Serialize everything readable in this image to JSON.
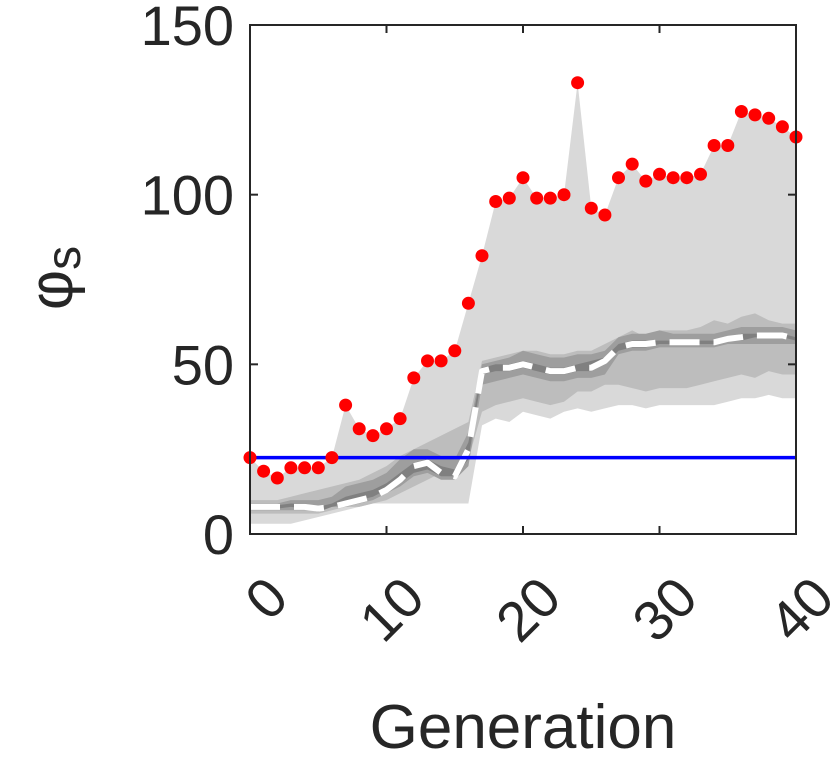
{
  "chart_data": {
    "type": "line",
    "xlabel": "Generation",
    "ylabel": {
      "symbol": "φ",
      "subscript": "s"
    },
    "xlim": [
      0,
      40
    ],
    "ylim": [
      0,
      150
    ],
    "xticks": [
      0,
      10,
      20,
      30,
      40
    ],
    "yticks": [
      0,
      50,
      100,
      150
    ],
    "grid": false,
    "legend": "none",
    "colors": {
      "max_points": "#ff0000",
      "reference_line": "#0000ff",
      "median_line": "#ffffff",
      "band_outer": "#d9d9d9",
      "band_mid": "#bdbdbd",
      "band_mid2": "#9e9e9e",
      "band_inner": "#808080",
      "axis": "#262626"
    },
    "reference_line": 22.5,
    "max_points": {
      "x": [
        0,
        1,
        2,
        3,
        4,
        5,
        6,
        7,
        8,
        9,
        10,
        11,
        12,
        13,
        14,
        15,
        16,
        17,
        18,
        19,
        20,
        21,
        22,
        23,
        24,
        25,
        26,
        27,
        28,
        29,
        30,
        31,
        32,
        33,
        34,
        35,
        36,
        37,
        38,
        39,
        40
      ],
      "y": [
        22.5,
        18.5,
        16.5,
        19.5,
        19.5,
        19.5,
        22.5,
        38,
        31,
        29,
        31,
        34,
        46,
        51,
        51,
        54,
        68,
        82,
        98,
        99,
        105,
        99,
        99,
        100,
        133,
        96,
        94,
        105,
        109,
        104,
        106,
        105,
        105,
        106,
        114.5,
        114.5,
        124.5,
        123.5,
        122.5,
        120,
        117
      ]
    },
    "band_outer": {
      "x": [
        0,
        1,
        2,
        3,
        4,
        5,
        6,
        7,
        8,
        9,
        10,
        11,
        12,
        13,
        14,
        15,
        16,
        17,
        18,
        19,
        20,
        21,
        22,
        23,
        24,
        25,
        26,
        27,
        28,
        29,
        30,
        31,
        32,
        33,
        34,
        35,
        36,
        37,
        38,
        39,
        40
      ],
      "upper": [
        22.5,
        18.5,
        16.5,
        19.5,
        19.5,
        19.5,
        22.5,
        38,
        31,
        29,
        31,
        34,
        46,
        51,
        51,
        54,
        68,
        82,
        98,
        99,
        105,
        99,
        99,
        100,
        133,
        96,
        94,
        105,
        109,
        104,
        106,
        105,
        105,
        106,
        114.5,
        114.5,
        124.5,
        123.5,
        122.5,
        120,
        117
      ],
      "lower": [
        3,
        3,
        3,
        3,
        4,
        5,
        6,
        7,
        8,
        9,
        9,
        9,
        9,
        9,
        9,
        9,
        9,
        32,
        34,
        33,
        36,
        35,
        34,
        36,
        37,
        36,
        37,
        38,
        38,
        37,
        38,
        38,
        38,
        38,
        38,
        39,
        40,
        40,
        41,
        40,
        40
      ]
    },
    "band_mid": {
      "x": [
        0,
        1,
        2,
        3,
        4,
        5,
        6,
        7,
        8,
        9,
        10,
        11,
        12,
        13,
        14,
        15,
        16,
        17,
        18,
        19,
        20,
        21,
        22,
        23,
        24,
        25,
        26,
        27,
        28,
        29,
        30,
        31,
        32,
        33,
        34,
        35,
        36,
        37,
        38,
        39,
        40
      ],
      "upper": [
        10,
        10,
        10,
        11,
        12,
        13,
        14,
        15,
        16,
        18,
        20,
        23,
        25,
        27,
        29,
        31,
        33,
        51,
        52,
        53,
        54,
        54,
        53,
        53,
        54,
        54,
        56,
        58,
        60,
        58,
        60,
        60,
        60,
        61,
        63,
        62,
        64,
        65,
        63,
        62,
        62
      ],
      "lower": [
        6,
        6,
        6,
        6,
        6,
        6,
        7,
        8,
        8,
        9,
        10,
        12,
        14,
        16,
        18,
        20,
        22,
        36,
        38,
        39,
        40,
        39,
        38,
        39,
        42,
        42,
        44,
        44,
        43,
        42,
        43,
        43,
        43,
        44,
        45,
        46,
        47,
        46,
        48,
        47,
        47
      ]
    },
    "band_mid2": {
      "x": [
        0,
        1,
        2,
        3,
        4,
        5,
        6,
        7,
        8,
        9,
        10,
        11,
        12,
        13,
        14,
        15,
        16,
        17,
        18,
        19,
        20,
        21,
        22,
        23,
        24,
        25,
        26,
        27,
        28,
        29,
        30,
        31,
        32,
        33,
        34,
        35,
        36,
        37,
        38,
        39,
        40
      ],
      "upper": [
        9,
        9,
        9,
        10,
        10,
        10,
        11,
        14,
        15,
        16,
        18,
        22,
        25,
        25,
        23,
        22,
        30,
        50,
        51,
        52,
        54,
        53,
        52,
        52,
        53,
        53,
        54,
        58,
        59,
        59,
        60,
        59,
        59,
        59,
        59,
        60,
        61,
        61,
        61,
        61,
        60
      ],
      "lower": [
        7,
        7,
        7,
        7,
        7,
        7,
        8,
        8,
        9,
        10,
        12,
        14,
        17,
        18,
        16,
        16,
        20,
        44,
        45,
        46,
        47,
        46,
        45,
        45,
        46,
        46,
        47,
        53,
        54,
        54,
        55,
        55,
        55,
        55,
        55,
        56,
        56,
        56,
        56,
        56,
        56
      ]
    },
    "band_inner": {
      "x": [
        0,
        1,
        2,
        3,
        4,
        5,
        6,
        7,
        8,
        9,
        10,
        11,
        12,
        13,
        14,
        15,
        16,
        17,
        18,
        19,
        20,
        21,
        22,
        23,
        24,
        25,
        26,
        27,
        28,
        29,
        30,
        31,
        32,
        33,
        34,
        35,
        36,
        37,
        38,
        39,
        40
      ],
      "upper": [
        8.5,
        8.5,
        8.5,
        9,
        9,
        8,
        9,
        11,
        12,
        13,
        15,
        18,
        21,
        22,
        20,
        19,
        27,
        49,
        50,
        50,
        51,
        50,
        49,
        49,
        50,
        51,
        52,
        56,
        57,
        57,
        57,
        57,
        57,
        57,
        57,
        58,
        59,
        59,
        59,
        59,
        58
      ],
      "lower": [
        7.5,
        7.5,
        7.5,
        8,
        7.5,
        6.5,
        8,
        9,
        10,
        11,
        13,
        15,
        18,
        19,
        17,
        17,
        22,
        47,
        48,
        48,
        49,
        48,
        47,
        47,
        48,
        48,
        50,
        54,
        55,
        55,
        56,
        56,
        56,
        56,
        56,
        57,
        57,
        58,
        58,
        58,
        57
      ]
    },
    "median_line": {
      "x": [
        0,
        1,
        2,
        3,
        4,
        5,
        6,
        7,
        8,
        9,
        10,
        11,
        12,
        13,
        14,
        15,
        16,
        17,
        18,
        19,
        20,
        21,
        22,
        23,
        24,
        25,
        26,
        27,
        28,
        29,
        30,
        31,
        32,
        33,
        34,
        35,
        36,
        37,
        38,
        39,
        40
      ],
      "y": [
        8,
        8,
        8,
        8,
        8,
        7.5,
        8,
        9,
        10,
        11,
        13,
        16,
        20,
        21,
        18,
        17,
        25,
        48,
        49,
        49,
        50,
        49,
        48,
        48,
        49,
        49,
        51,
        55,
        56,
        56,
        56.5,
        56.5,
        56.5,
        56.5,
        56.5,
        57.5,
        58,
        58.5,
        58.5,
        58.5,
        57.5
      ]
    }
  }
}
